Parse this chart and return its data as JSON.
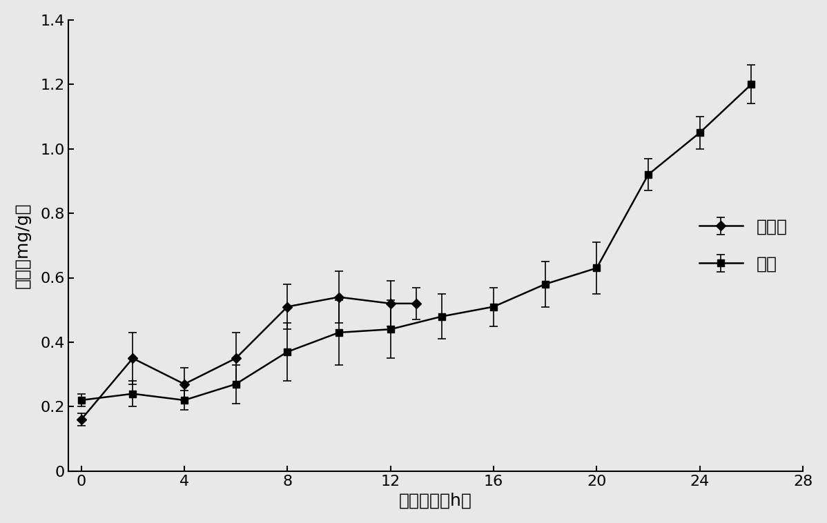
{
  "title": "",
  "xlabel": "煎炸时间（h）",
  "ylabel": "酸价（mg/g）",
  "xlim": [
    -0.5,
    28
  ],
  "ylim": [
    0,
    1.4
  ],
  "xticks": [
    0,
    4,
    8,
    12,
    16,
    20,
    24,
    28
  ],
  "yticks": [
    0,
    0.2,
    0.4,
    0.6,
    0.8,
    1.0,
    1.2,
    1.4
  ],
  "series1_label": "菜籽油",
  "series2_label": "茶油",
  "series1_x": [
    0,
    2,
    4,
    6,
    8,
    10,
    12,
    13
  ],
  "series1_y": [
    0.16,
    0.35,
    0.27,
    0.35,
    0.51,
    0.54,
    0.52,
    0.52
  ],
  "series1_yerr": [
    0.02,
    0.08,
    0.05,
    0.08,
    0.07,
    0.08,
    0.07,
    0.05
  ],
  "series2_x": [
    0,
    2,
    4,
    6,
    8,
    10,
    12,
    14,
    16,
    18,
    20,
    22,
    24,
    26
  ],
  "series2_y": [
    0.22,
    0.24,
    0.22,
    0.27,
    0.37,
    0.43,
    0.44,
    0.48,
    0.51,
    0.58,
    0.63,
    0.92,
    1.05,
    1.2
  ],
  "series2_yerr": [
    0.02,
    0.04,
    0.03,
    0.06,
    0.09,
    0.1,
    0.09,
    0.07,
    0.06,
    0.07,
    0.08,
    0.05,
    0.05,
    0.06
  ],
  "line_color": "#000000",
  "marker1": "D",
  "marker2": "s",
  "markersize": 7,
  "linewidth": 1.8,
  "font_size": 18,
  "legend_fontsize": 18,
  "tick_fontsize": 16,
  "background_color": "#e8e8e8"
}
